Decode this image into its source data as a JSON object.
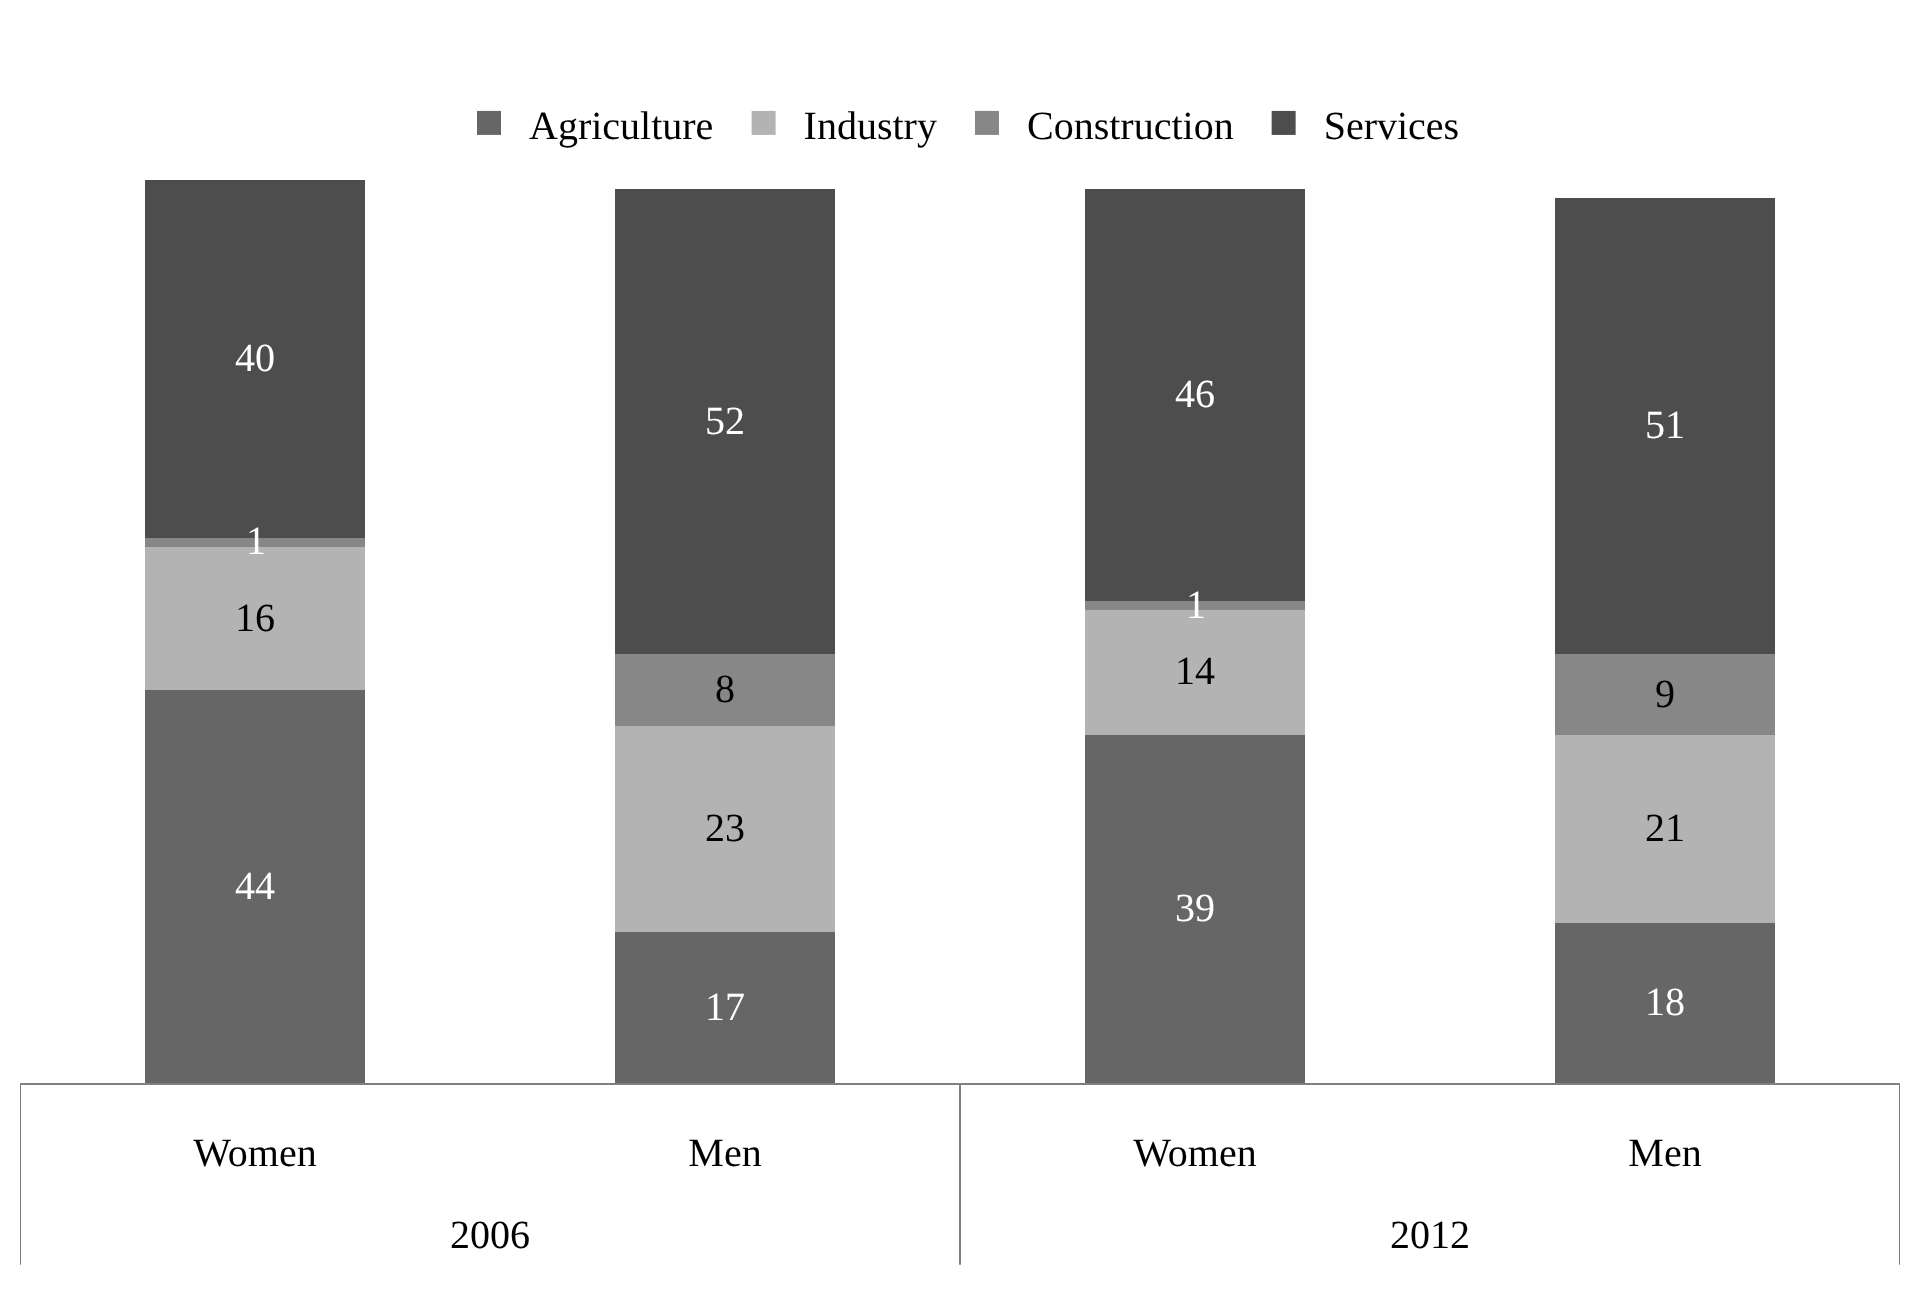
{
  "chart_data": {
    "type": "bar",
    "stacked": true,
    "categories": [
      "Women",
      "Men",
      "Women",
      "Men"
    ],
    "series": [
      {
        "name": "Agriculture",
        "color": "#666666",
        "values": [
          44,
          17,
          39,
          18
        ]
      },
      {
        "name": "Industry",
        "color": "#b3b3b3",
        "values": [
          16,
          23,
          14,
          21
        ]
      },
      {
        "name": "Construction",
        "color": "#878787",
        "values": [
          1,
          8,
          1,
          9
        ]
      },
      {
        "name": "Services",
        "color": "#4d4d4d",
        "values": [
          40,
          52,
          46,
          51
        ]
      }
    ],
    "annotations": [
      "2006",
      "2012"
    ],
    "ylim": [
      0,
      101
    ],
    "tick_labels": "x",
    "data_labels": true,
    "legend": "top",
    "grid": false
  }
}
